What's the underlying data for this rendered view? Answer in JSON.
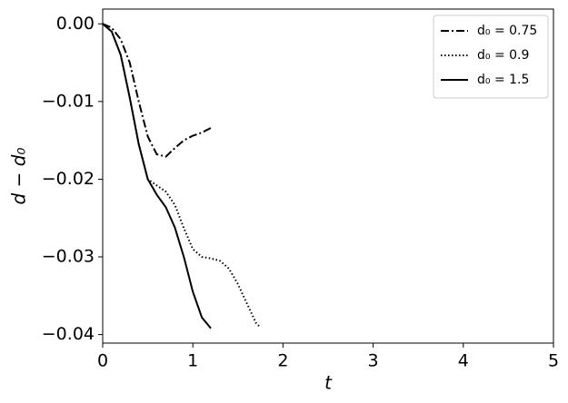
{
  "chart_data": {
    "type": "line",
    "xlabel": "t",
    "ylabel": "d − d₀",
    "xlim": [
      0,
      5
    ],
    "ylim": [
      -0.0411,
      0.0019
    ],
    "xticks": [
      0,
      1,
      2,
      3,
      4,
      5
    ],
    "yticks": [
      {
        "value": 0,
        "label": "0.00"
      },
      {
        "value": -0.01,
        "label": "−0.01"
      },
      {
        "value": -0.02,
        "label": "−0.02"
      },
      {
        "value": -0.03,
        "label": "−0.03"
      },
      {
        "value": -0.04,
        "label": "−0.04"
      }
    ],
    "legend": "upper right",
    "series": [
      {
        "name": "d₀ = 0.75",
        "color": "#000000",
        "linestyle": "dashdot",
        "x": [
          0,
          0.1,
          0.2,
          0.3,
          0.4,
          0.5,
          0.6,
          0.7,
          0.8,
          0.9,
          1.0,
          1.1,
          1.2
        ],
        "values": [
          0,
          -0.0005,
          -0.002,
          -0.005,
          -0.01,
          -0.0145,
          -0.0168,
          -0.0171,
          -0.016,
          -0.015,
          -0.0144,
          -0.014,
          -0.0134
        ]
      },
      {
        "name": "d₀ = 0.9",
        "color": "#000000",
        "linestyle": "dotted",
        "x": [
          0,
          0.1,
          0.2,
          0.3,
          0.4,
          0.5,
          0.6,
          0.7,
          0.8,
          0.9,
          1.0,
          1.1,
          1.2,
          1.3,
          1.4,
          1.5,
          1.6,
          1.7,
          1.75
        ],
        "values": [
          0,
          -0.001,
          -0.004,
          -0.0095,
          -0.0155,
          -0.02,
          -0.0208,
          -0.0216,
          -0.0233,
          -0.0263,
          -0.029,
          -0.03,
          -0.0302,
          -0.0305,
          -0.0315,
          -0.0335,
          -0.036,
          -0.0385,
          -0.0391
        ]
      },
      {
        "name": "d₀ = 1.5",
        "color": "#000000",
        "linestyle": "solid",
        "x": [
          0,
          0.1,
          0.2,
          0.3,
          0.4,
          0.5,
          0.6,
          0.7,
          0.8,
          0.9,
          1.0,
          1.1,
          1.2
        ],
        "values": [
          0,
          -0.001,
          -0.004,
          -0.0095,
          -0.0155,
          -0.02,
          -0.022,
          -0.0236,
          -0.0262,
          -0.03,
          -0.0345,
          -0.0378,
          -0.0392
        ]
      }
    ]
  }
}
